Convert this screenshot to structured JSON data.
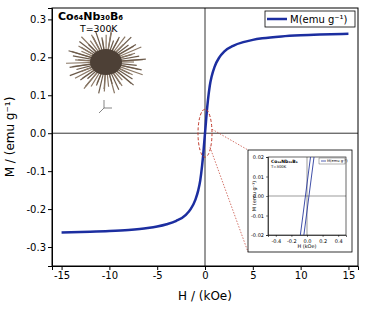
{
  "chart_data": [
    {
      "type": "line",
      "title": "Co₆₄Nb₃₀B₆",
      "subtitle": "T=300K",
      "x_label": "H / (kOe)",
      "y_label": "M / (emu g⁻¹)",
      "x": [
        -15,
        -12,
        -10,
        -8,
        -6,
        -5,
        -4,
        -3,
        -2,
        -1.5,
        -1,
        -0.7,
        -0.5,
        -0.3,
        -0.2,
        -0.1,
        0,
        0.1,
        0.2,
        0.3,
        0.5,
        0.7,
        1,
        1.5,
        2,
        3,
        4,
        5,
        6,
        8,
        10,
        12,
        15
      ],
      "series": [
        {
          "name": "M(emu g⁻¹)",
          "color": "#1c2ea0",
          "values": [
            -0.262,
            -0.26,
            -0.258,
            -0.255,
            -0.25,
            -0.246,
            -0.24,
            -0.231,
            -0.215,
            -0.2,
            -0.175,
            -0.15,
            -0.125,
            -0.085,
            -0.06,
            -0.03,
            0,
            0.03,
            0.06,
            0.085,
            0.125,
            0.15,
            0.175,
            0.2,
            0.215,
            0.231,
            0.24,
            0.246,
            0.25,
            0.255,
            0.258,
            0.26,
            0.262
          ]
        }
      ],
      "xlim": [
        -16,
        16
      ],
      "xticks": [
        -15,
        -10,
        -5,
        {
          "value": 0,
          "label": "0"
        },
        5,
        10,
        15
      ],
      "ylim": [
        -0.35,
        0.33
      ],
      "yticks": [
        -0.3,
        -0.2,
        -0.1,
        {
          "value": 0,
          "label": "0.0"
        },
        0.1,
        0.2,
        0.3
      ],
      "grid": false,
      "legend": "top-right"
    },
    {
      "type": "line",
      "title": "Co₆₄Nb₃₀B₆",
      "subtitle": "T=300K",
      "x_label": "H (kOe)",
      "y_label": "M (emu g⁻¹)",
      "x": [
        -0.085,
        0.045,
        null,
        -0.04,
        0.09
      ],
      "series": [
        {
          "name": "M(emu g⁻¹)",
          "color": "#2a3b9e",
          "values": [
            -0.02,
            0.02,
            null,
            -0.02,
            0.02
          ]
        }
      ],
      "xlim": [
        -0.5,
        0.5
      ],
      "xticks": [
        -0.4,
        -0.2,
        {
          "value": 0,
          "label": "0.0"
        },
        0.2,
        0.4
      ],
      "ylim": [
        -0.02,
        0.02
      ],
      "yticks": [
        -0.02,
        -0.01,
        {
          "value": 0,
          "label": "0.00"
        },
        0.01,
        0.02
      ],
      "grid": false,
      "legend": "top-right"
    }
  ]
}
